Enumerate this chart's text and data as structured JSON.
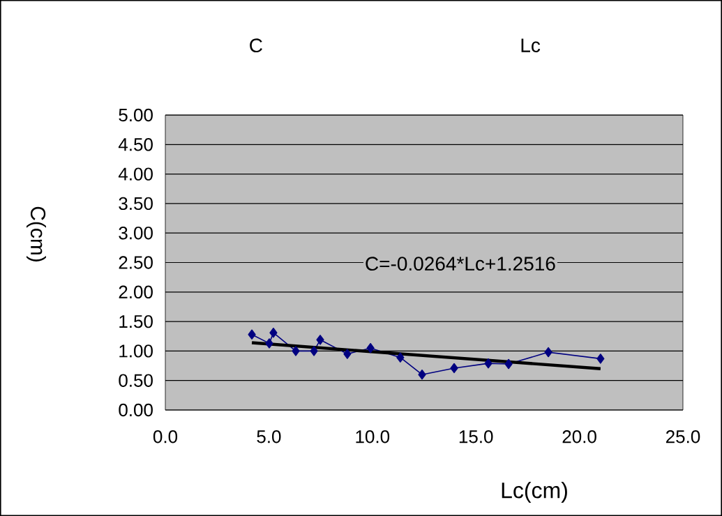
{
  "chart_data": {
    "type": "scatter",
    "xlabel": "Lc(cm)",
    "ylabel": "C(cm)",
    "annotations": [
      "C",
      "Lc",
      "C=-0.0264*Lc+1.2516"
    ],
    "series": [
      {
        "type": "line",
        "color": "#000080",
        "marker": "diamond",
        "x": [
          4.18,
          5.02,
          5.22,
          6.3,
          7.18,
          7.48,
          8.79,
          9.91,
          11.35,
          12.4,
          13.95,
          15.6,
          16.58,
          18.5,
          21.02
        ],
        "values": [
          1.28,
          1.13,
          1.31,
          1.0,
          1.0,
          1.19,
          0.95,
          1.05,
          0.89,
          0.6,
          0.71,
          0.79,
          0.78,
          0.98,
          0.87
        ]
      },
      {
        "type": "line",
        "color": "#000000",
        "marker": "none",
        "x": [
          4.18,
          21.02
        ],
        "values": [
          1.14,
          0.7
        ]
      }
    ],
    "xlim": [
      0,
      25
    ],
    "ylim": [
      0,
      5
    ],
    "xticks": [
      {
        "value": 0,
        "label": "0.0"
      },
      {
        "value": 5,
        "label": "5.0"
      },
      {
        "value": 10,
        "label": "10.0"
      },
      {
        "value": 15,
        "label": "15.0"
      },
      {
        "value": 20,
        "label": "20.0"
      },
      {
        "value": 25,
        "label": "25.0"
      }
    ],
    "yticks": [
      {
        "value": 0,
        "label": "0.00"
      },
      {
        "value": 0.5,
        "label": "0.50"
      },
      {
        "value": 1,
        "label": "1.00"
      },
      {
        "value": 1.5,
        "label": "1.50"
      },
      {
        "value": 2,
        "label": "2.00"
      },
      {
        "value": 2.5,
        "label": "2.50"
      },
      {
        "value": 3,
        "label": "3.00"
      },
      {
        "value": 3.5,
        "label": "3.50"
      },
      {
        "value": 4,
        "label": "4.00"
      },
      {
        "value": 4.5,
        "label": "4.50"
      },
      {
        "value": 5,
        "label": "5.00"
      }
    ],
    "grid": "y"
  }
}
